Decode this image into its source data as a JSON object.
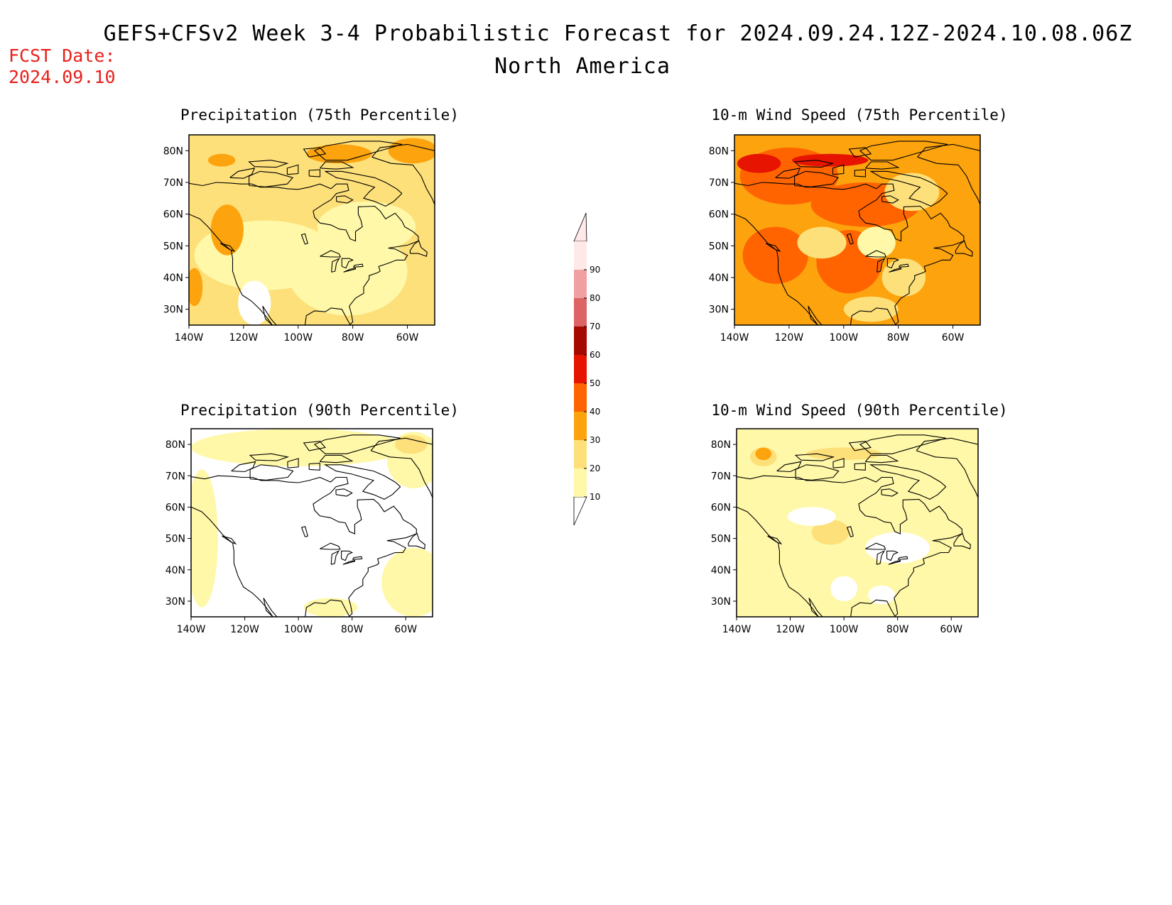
{
  "header": {
    "title_line1": "GEFS+CFSv2 Week 3-4 Probabilistic Forecast for 2024.09.24.12Z-2024.10.08.06Z",
    "title_line2": "North America",
    "fcst_label": "FCST Date:",
    "fcst_date": "2024.09.10"
  },
  "colors": {
    "white": "#ffffff",
    "c10": "#fff8a8",
    "c20": "#fde07a",
    "c30": "#fca30e",
    "c40": "#ff6400",
    "c50": "#e61400",
    "c60": "#a50a00",
    "c70": "#dc6464",
    "c80": "#f0a0a0",
    "c90": "#ffe8e8"
  },
  "colorbar": {
    "levels": [
      "10",
      "20",
      "30",
      "40",
      "50",
      "60",
      "70",
      "80",
      "90"
    ]
  },
  "axes": {
    "lat_ticks": [
      "30N",
      "40N",
      "50N",
      "60N",
      "70N",
      "80N"
    ],
    "lon_ticks": [
      "140W",
      "120W",
      "100W",
      "80W",
      "60W"
    ],
    "lon_range": [
      -140,
      -50
    ],
    "lat_range": [
      25,
      85
    ]
  },
  "panels": [
    {
      "id": "precip75",
      "title": "Precipitation (75th Percentile)",
      "base": "c20",
      "zones": [
        {
          "c": "c10",
          "lon": -112,
          "lat": 47,
          "rx": 26,
          "ry": 11
        },
        {
          "c": "c10",
          "lon": -82,
          "lat": 42,
          "rx": 22,
          "ry": 14
        },
        {
          "c": "c10",
          "lon": -75,
          "lat": 56,
          "rx": 18,
          "ry": 8
        },
        {
          "c": "white",
          "lon": -116,
          "lat": 32,
          "rx": 6,
          "ry": 7
        },
        {
          "c": "c30",
          "lon": -126,
          "lat": 55,
          "rx": 6,
          "ry": 8
        },
        {
          "c": "c30",
          "lon": -138,
          "lat": 37,
          "rx": 3,
          "ry": 6
        },
        {
          "c": "c30",
          "lon": -128,
          "lat": 77,
          "rx": 5,
          "ry": 2
        },
        {
          "c": "c30",
          "lon": -85,
          "lat": 79,
          "rx": 12,
          "ry": 3
        },
        {
          "c": "c30",
          "lon": -58,
          "lat": 80,
          "rx": 9,
          "ry": 4
        }
      ]
    },
    {
      "id": "wind75",
      "title": "10-m Wind Speed (75th Percentile)",
      "base": "c30",
      "zones": [
        {
          "c": "c40",
          "lon": -120,
          "lat": 72,
          "rx": 18,
          "ry": 9
        },
        {
          "c": "c40",
          "lon": -92,
          "lat": 63,
          "rx": 20,
          "ry": 7
        },
        {
          "c": "c40",
          "lon": -125,
          "lat": 47,
          "rx": 12,
          "ry": 9
        },
        {
          "c": "c40",
          "lon": -98,
          "lat": 45,
          "rx": 12,
          "ry": 10
        },
        {
          "c": "c50",
          "lon": -131,
          "lat": 76,
          "rx": 8,
          "ry": 3
        },
        {
          "c": "c50",
          "lon": -105,
          "lat": 77,
          "rx": 14,
          "ry": 2
        },
        {
          "c": "c20",
          "lon": -75,
          "lat": 67,
          "rx": 10,
          "ry": 6
        },
        {
          "c": "c20",
          "lon": -108,
          "lat": 51,
          "rx": 9,
          "ry": 5
        },
        {
          "c": "c20",
          "lon": -78,
          "lat": 40,
          "rx": 8,
          "ry": 6
        },
        {
          "c": "c20",
          "lon": -90,
          "lat": 30,
          "rx": 10,
          "ry": 4
        },
        {
          "c": "c10",
          "lon": -88,
          "lat": 51,
          "rx": 7,
          "ry": 5
        }
      ]
    },
    {
      "id": "precip90",
      "title": "Precipitation (90th Percentile)",
      "base": "white",
      "zones": [
        {
          "c": "c10",
          "lon": -100,
          "lat": 79,
          "rx": 40,
          "ry": 6
        },
        {
          "c": "c10",
          "lon": -136,
          "lat": 50,
          "rx": 6,
          "ry": 22
        },
        {
          "c": "c10",
          "lon": -57,
          "lat": 36,
          "rx": 12,
          "ry": 11
        },
        {
          "c": "c10",
          "lon": -57,
          "lat": 75,
          "rx": 10,
          "ry": 9
        },
        {
          "c": "c10",
          "lon": -88,
          "lat": 28,
          "rx": 10,
          "ry": 3
        },
        {
          "c": "c20",
          "lon": -58,
          "lat": 80,
          "rx": 6,
          "ry": 3
        }
      ]
    },
    {
      "id": "wind90",
      "title": "10-m Wind Speed (90th Percentile)",
      "base": "c10",
      "zones": [
        {
          "c": "c20",
          "lon": -130,
          "lat": 76,
          "rx": 5,
          "ry": 3
        },
        {
          "c": "c20",
          "lon": -100,
          "lat": 77,
          "rx": 14,
          "ry": 2
        },
        {
          "c": "c20",
          "lon": -105,
          "lat": 52,
          "rx": 7,
          "ry": 4
        },
        {
          "c": "c30",
          "lon": -130,
          "lat": 77,
          "rx": 3,
          "ry": 2
        },
        {
          "c": "white",
          "lon": -112,
          "lat": 57,
          "rx": 9,
          "ry": 3
        },
        {
          "c": "white",
          "lon": -80,
          "lat": 47,
          "rx": 12,
          "ry": 5
        },
        {
          "c": "white",
          "lon": -100,
          "lat": 34,
          "rx": 5,
          "ry": 4
        },
        {
          "c": "white",
          "lon": -86,
          "lat": 32,
          "rx": 5,
          "ry": 3
        }
      ]
    }
  ]
}
